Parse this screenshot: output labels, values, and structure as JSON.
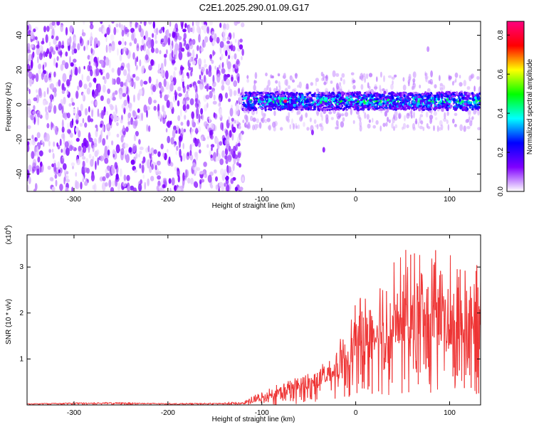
{
  "title": "C2E1.2025.290.01.09.G17",
  "chart_data": [
    {
      "type": "heatmap",
      "xlabel": "Height of straight line (km)",
      "ylabel": "Frequency (Hz)",
      "xlim": [
        -350,
        133
      ],
      "ylim": [
        -50,
        48
      ],
      "xticks": [
        -300,
        -200,
        -100,
        0,
        100
      ],
      "xtick_labels": [
        "-300",
        "-200",
        "-100",
        "0",
        "100"
      ],
      "yticks": [
        -40,
        -20,
        0,
        20,
        40
      ],
      "ytick_labels": [
        "-40",
        "-20",
        "0",
        "20",
        "40"
      ],
      "noise_region": {
        "x_from": -350,
        "x_to": -120,
        "freq_from": -50,
        "freq_to": 48,
        "typical_amplitude": 0.08
      },
      "signal_band": {
        "x_from": -120,
        "x_to": 133,
        "center_freq": 2,
        "half_width_freq": 5,
        "typical_amplitude": 0.35,
        "peak_amplitude": 0.85,
        "peak_x": -75,
        "peak_freq": 2
      },
      "isolated_features": [
        {
          "x": -46,
          "freq": -16,
          "amplitude": 0.1
        },
        {
          "x": -34,
          "freq": -26,
          "amplitude": 0.1
        },
        {
          "x": 77,
          "freq": 32,
          "amplitude": 0.05
        }
      ],
      "colorbar": {
        "label": "Normalized spectral amplitude",
        "range": [
          0,
          0.87
        ],
        "ticks": [
          0.0,
          0.2,
          0.4,
          0.6,
          0.8
        ],
        "tick_labels": [
          "0.0",
          "0.2",
          "0.4",
          "0.6",
          "0.8"
        ],
        "colors": [
          "#ffffff",
          "#8000ff",
          "#0000ff",
          "#00ffff",
          "#00ff00",
          "#ffff00",
          "#ff0000",
          "#ff0080"
        ]
      }
    },
    {
      "type": "line",
      "xlabel": "Height of straight line (km)",
      "ylabel": "SNR (10 * v/v)",
      "scale_label": "(x10",
      "scale_exponent": "4",
      "scale_close": ")",
      "xlim": [
        -350,
        133
      ],
      "ylim": [
        0,
        3.7
      ],
      "xticks": [
        -300,
        -200,
        -100,
        0,
        100
      ],
      "xtick_labels": [
        "-300",
        "-200",
        "-100",
        "0",
        "100"
      ],
      "yticks": [
        1,
        2,
        3
      ],
      "ytick_labels": [
        "1",
        "2",
        "3"
      ],
      "series_color": "#ee3333",
      "envelope_x": [
        -350,
        -300,
        -250,
        -200,
        -150,
        -120,
        -100,
        -80,
        -60,
        -40,
        -20,
        -10,
        0,
        20,
        40,
        60,
        80,
        100,
        120,
        133
      ],
      "envelope_low": [
        0.0,
        0.0,
        0.0,
        0.0,
        0.0,
        0.0,
        0.0,
        0.0,
        0.02,
        0.05,
        0.1,
        0.15,
        0.2,
        0.2,
        0.2,
        0.2,
        0.2,
        0.2,
        0.2,
        0.2
      ],
      "envelope_high": [
        0.03,
        0.05,
        0.06,
        0.04,
        0.05,
        0.08,
        0.3,
        0.5,
        0.65,
        0.85,
        1.3,
        1.7,
        2.2,
        2.8,
        3.2,
        3.5,
        3.4,
        3.3,
        3.2,
        3.0
      ],
      "envelope_mid": [
        0.02,
        0.03,
        0.03,
        0.02,
        0.02,
        0.03,
        0.1,
        0.2,
        0.3,
        0.4,
        0.6,
        0.8,
        1.0,
        1.2,
        1.3,
        1.4,
        1.4,
        1.3,
        1.3,
        1.2
      ]
    }
  ]
}
